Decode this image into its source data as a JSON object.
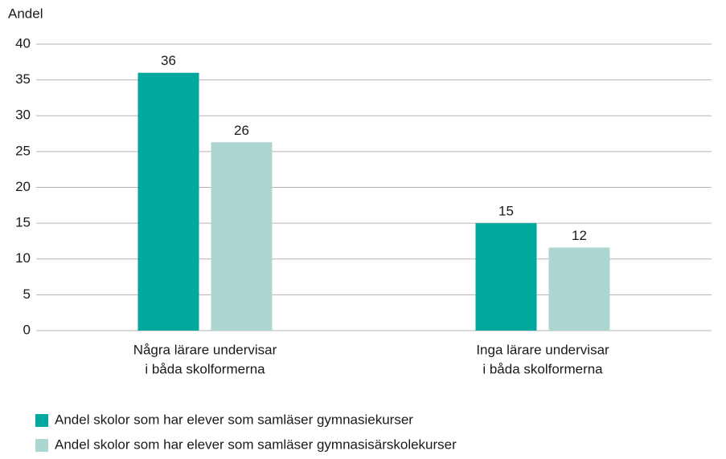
{
  "chart_data": {
    "type": "bar",
    "y_label": "Andel",
    "categories": [
      [
        "Några lärare undervisar",
        "i båda skolformerna"
      ],
      [
        "Inga lärare undervisar",
        "i båda skolformerna"
      ]
    ],
    "series": [
      {
        "name": "Andel skolor som har elever som samläser gymnasiekurser",
        "color": "#00a89e",
        "values": [
          36,
          15
        ],
        "value_labels": [
          "36",
          "15"
        ]
      },
      {
        "name": "Andel skolor som har elever som samläser gymnasisärskolekurser",
        "color": "#acd6cf",
        "values": [
          26.3,
          11.6
        ],
        "value_labels": [
          "26",
          "12"
        ]
      }
    ],
    "ylim": [
      0,
      40
    ],
    "yticks": [
      0,
      5,
      10,
      15,
      20,
      25,
      30,
      35,
      40
    ],
    "grid": true,
    "legend": "bottom"
  }
}
